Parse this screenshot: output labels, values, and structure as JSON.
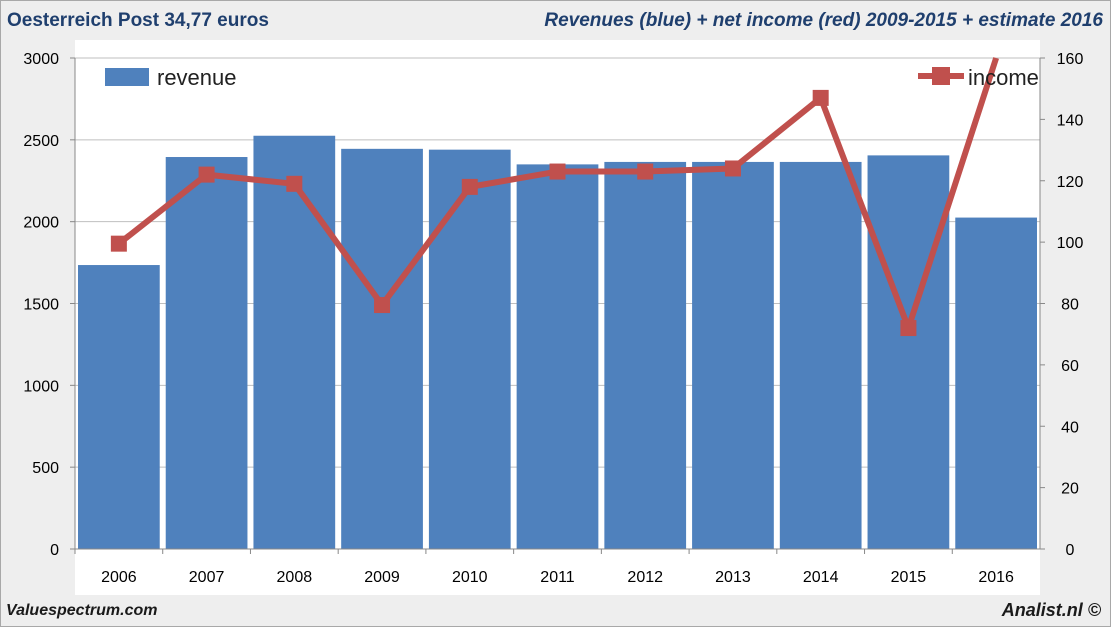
{
  "header": {
    "left_title": "Oesterreich Post 34,77 euros",
    "right_title": "Revenues (blue) + net income (red) 2009-2015 + estimate 2016"
  },
  "footer": {
    "left": "Valuespectrum.com",
    "right": "Analist.nl ©"
  },
  "chart_data": {
    "type": "bar",
    "categories": [
      "2006",
      "2007",
      "2008",
      "2009",
      "2010",
      "2011",
      "2012",
      "2013",
      "2014",
      "2015",
      "2016"
    ],
    "series": [
      {
        "name": "revenue",
        "type": "bar",
        "axis": "left",
        "color": "#4f81bd",
        "values": [
          1735,
          2395,
          2525,
          2445,
          2440,
          2350,
          2365,
          2365,
          2365,
          2405,
          2025
        ]
      },
      {
        "name": "income",
        "type": "line",
        "axis": "right",
        "color": "#c0504d",
        "values": [
          99.5,
          122,
          119,
          79.5,
          118,
          123,
          123,
          124,
          147,
          72,
          160
        ]
      }
    ],
    "y_left": {
      "min": 0,
      "max": 3000,
      "ticks": [
        0,
        500,
        1000,
        1500,
        2000,
        2500,
        3000
      ]
    },
    "y_right": {
      "min": 0,
      "max": 160,
      "ticks": [
        0,
        20,
        40,
        60,
        80,
        100,
        120,
        140,
        160
      ]
    },
    "grid": true,
    "legend": {
      "revenue": "top-left",
      "income": "top-right"
    }
  }
}
